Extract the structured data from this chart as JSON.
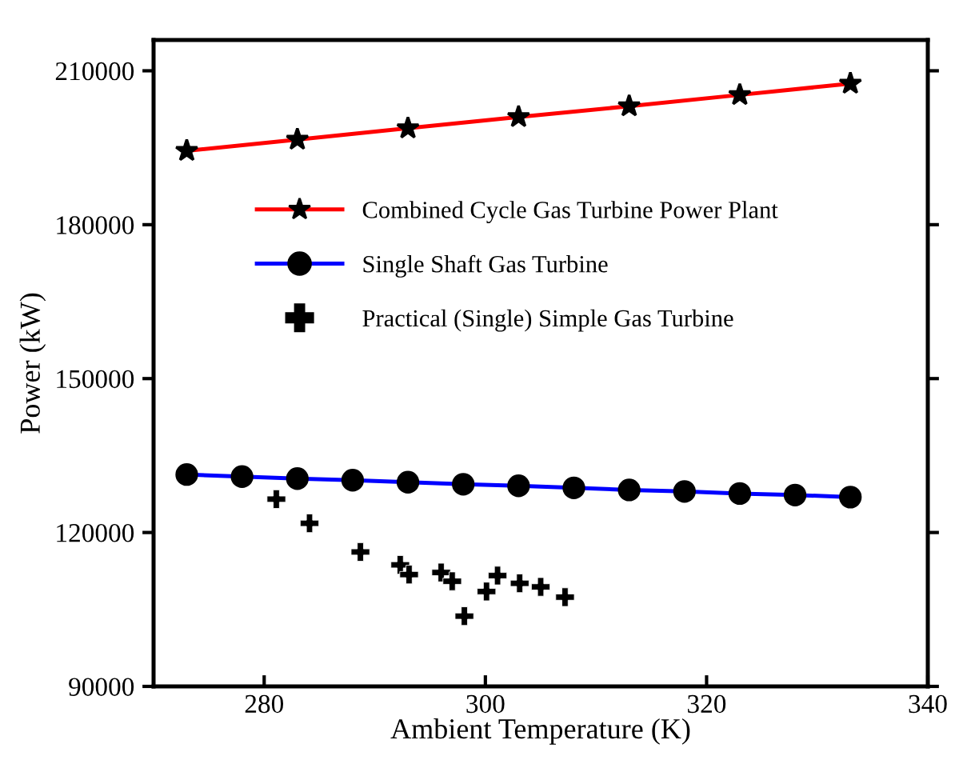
{
  "chart_data": {
    "type": "line",
    "xlabel": "Ambient Temperature (K)",
    "ylabel": "Power (kW)",
    "xlim": [
      270,
      340
    ],
    "xticks": [
      280,
      300,
      320,
      340
    ],
    "ylim": [
      90000,
      216000
    ],
    "yticks": [
      90000,
      120000,
      150000,
      180000,
      210000
    ],
    "grid": false,
    "legend": "center",
    "series": [
      {
        "name": "Combined Cycle Gas Turbine Power Plant",
        "color": "#ff0000",
        "marker": "star",
        "x": [
          273,
          283,
          293,
          303,
          313,
          323,
          333
        ],
        "values": [
          194400,
          196600,
          198800,
          201000,
          203100,
          205300,
          207500
        ]
      },
      {
        "name": "Single Shaft Gas Turbine",
        "color": "#0000ff",
        "marker": "circle",
        "x": [
          273,
          278,
          283,
          288,
          293,
          298,
          303,
          308,
          313,
          318,
          323,
          328,
          333
        ],
        "values": [
          131300,
          130900,
          130500,
          130200,
          129800,
          129400,
          129100,
          128700,
          128300,
          128000,
          127600,
          127300,
          126900
        ]
      },
      {
        "name": "Practical (Single) Simple Gas Turbine",
        "type": "scatter",
        "color": "#000000",
        "marker": "cross",
        "x": [
          281.1,
          284.1,
          288.7,
          292.3,
          293.1,
          296.0,
          297.0,
          298.1,
          300.1,
          301.1,
          303.1,
          305.0,
          307.2
        ],
        "values": [
          126500,
          121800,
          116200,
          113700,
          111800,
          112200,
          110500,
          103700,
          108500,
          111600,
          110100,
          109400,
          107400
        ]
      }
    ]
  }
}
